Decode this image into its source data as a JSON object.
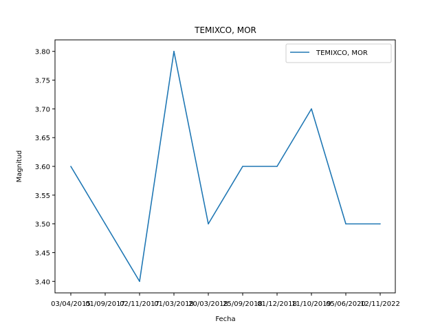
{
  "chart_data": {
    "type": "line",
    "title": "TEMIXCO, MOR",
    "xlabel": "Fecha",
    "ylabel": "Magnitud",
    "categories": [
      "03/04/2015",
      "01/09/2017",
      "02/11/2017",
      "01/03/2018",
      "20/03/2018",
      "25/09/2018",
      "01/12/2018",
      "11/10/2019",
      "05/06/2020",
      "12/11/2022"
    ],
    "series": [
      {
        "name": "TEMIXCO, MOR",
        "values": [
          3.6,
          3.5,
          3.4,
          3.8,
          3.5,
          3.6,
          3.6,
          3.7,
          3.5,
          3.5
        ]
      }
    ],
    "ylim": [
      3.38,
      3.82
    ],
    "yticks": [
      3.4,
      3.45,
      3.5,
      3.55,
      3.6,
      3.65,
      3.7,
      3.75,
      3.8
    ],
    "ytick_labels": [
      "3.40",
      "3.45",
      "3.50",
      "3.55",
      "3.60",
      "3.65",
      "3.70",
      "3.75",
      "3.80"
    ],
    "xtick_labels": [
      "03/04/2015",
      "01/09/2017",
      "02/11/2017",
      "01/03/2018",
      "20/03/2018",
      "25/09/2018",
      "01/12/2018",
      "11/10/2019",
      "05/06/2020",
      "12/11/2022"
    ],
    "line_color": "#1f77b4",
    "legend_position": "top-right",
    "grid": false
  }
}
